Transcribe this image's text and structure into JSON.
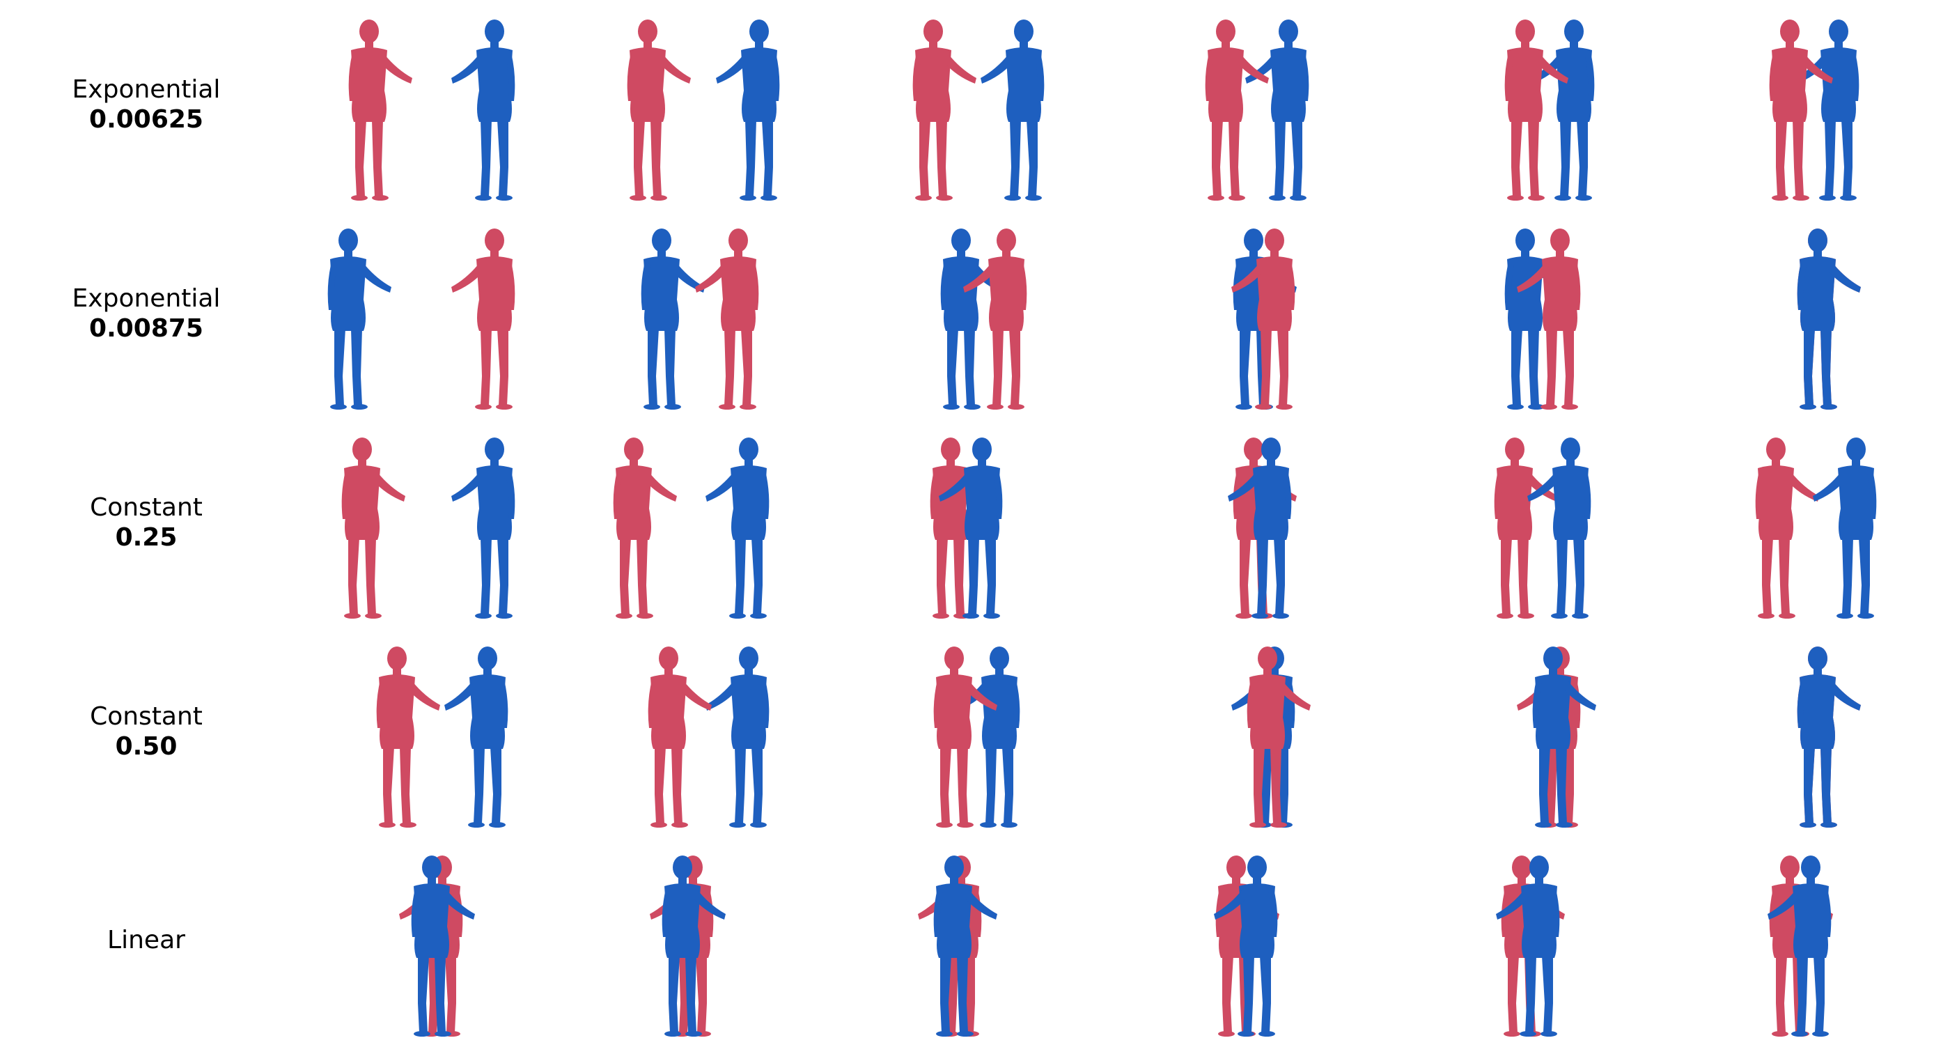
{
  "colors": {
    "red_figure": "#cf4a62",
    "blue_figure": "#1e5fbf",
    "background": "#ffffff"
  },
  "rows": [
    {
      "method": "Exponential",
      "value": "0.00625"
    },
    {
      "method": "Exponential",
      "value": "0.00875"
    },
    {
      "method": "Constant",
      "value": "0.25"
    },
    {
      "method": "Constant",
      "value": "0.50"
    },
    {
      "method": "Linear",
      "value": ""
    }
  ],
  "frames_per_row": 6
}
